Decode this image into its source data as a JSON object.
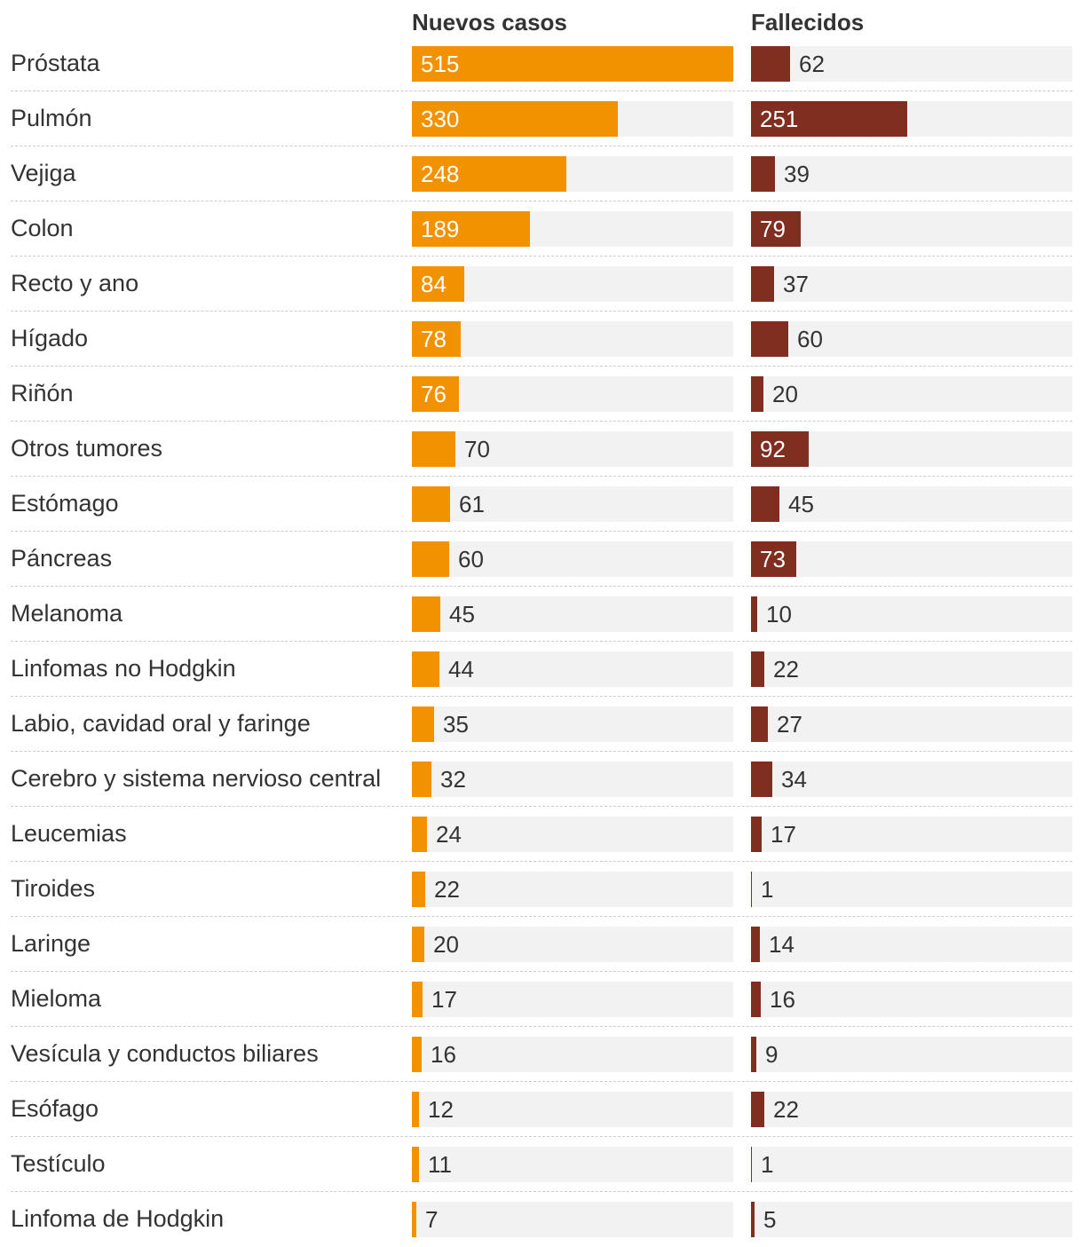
{
  "chart_data": {
    "type": "bar",
    "orientation": "horizontal",
    "title": "",
    "series": [
      {
        "name": "Nuevos casos",
        "color": "#f39200",
        "max": 515
      },
      {
        "name": "Fallecidos",
        "color": "#7f2e1f",
        "max": 515
      }
    ],
    "rows": [
      {
        "label": "Próstata",
        "cases": 515,
        "deaths": 62
      },
      {
        "label": "Pulmón",
        "cases": 330,
        "deaths": 251
      },
      {
        "label": "Vejiga",
        "cases": 248,
        "deaths": 39
      },
      {
        "label": "Colon",
        "cases": 189,
        "deaths": 79
      },
      {
        "label": "Recto y ano",
        "cases": 84,
        "deaths": 37
      },
      {
        "label": "Hígado",
        "cases": 78,
        "deaths": 60
      },
      {
        "label": "Riñón",
        "cases": 76,
        "deaths": 20
      },
      {
        "label": "Otros tumores",
        "cases": 70,
        "deaths": 92
      },
      {
        "label": "Estómago",
        "cases": 61,
        "deaths": 45
      },
      {
        "label": "Páncreas",
        "cases": 60,
        "deaths": 73
      },
      {
        "label": "Melanoma",
        "cases": 45,
        "deaths": 10
      },
      {
        "label": "Linfomas no Hodgkin",
        "cases": 44,
        "deaths": 22
      },
      {
        "label": "Labio, cavidad oral y faringe",
        "cases": 35,
        "deaths": 27
      },
      {
        "label": "Cerebro y sistema nervioso central",
        "cases": 32,
        "deaths": 34
      },
      {
        "label": "Leucemias",
        "cases": 24,
        "deaths": 17
      },
      {
        "label": "Tiroides",
        "cases": 22,
        "deaths": 1
      },
      {
        "label": "Laringe",
        "cases": 20,
        "deaths": 14
      },
      {
        "label": "Mieloma",
        "cases": 17,
        "deaths": 16
      },
      {
        "label": "Vesícula y conductos biliares",
        "cases": 16,
        "deaths": 9
      },
      {
        "label": "Esófago",
        "cases": 12,
        "deaths": 22
      },
      {
        "label": "Testículo",
        "cases": 11,
        "deaths": 1
      },
      {
        "label": "Linfoma de Hodgkin",
        "cases": 7,
        "deaths": 5
      }
    ],
    "xlim": [
      0,
      515
    ]
  }
}
